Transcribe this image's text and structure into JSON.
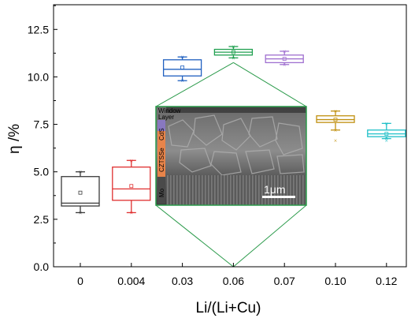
{
  "chart_data": {
    "type": "box",
    "xlabel": "Li/(Li+Cu)",
    "ylabel": "η /%",
    "ylim": [
      0,
      13.8
    ],
    "yticks": [
      "0.0",
      "2.5",
      "5.0",
      "7.5",
      "10.0",
      "12.5"
    ],
    "categories": [
      "0",
      "0.004",
      "0.03",
      "0.06",
      "0.07",
      "0.10",
      "0.12"
    ],
    "grid": false,
    "series": [
      {
        "color": "#3a3a3a",
        "whisker_min": 2.85,
        "q1": 3.2,
        "median": 3.35,
        "q3": 4.75,
        "whisker_max": 5.0,
        "mean": 3.9,
        "outliers": []
      },
      {
        "color": "#e03030",
        "whisker_min": 2.85,
        "q1": 3.5,
        "median": 4.1,
        "q3": 5.25,
        "whisker_max": 5.6,
        "mean": 4.25,
        "outliers": []
      },
      {
        "color": "#2060c0",
        "whisker_min": 9.8,
        "q1": 10.05,
        "median": 10.4,
        "q3": 10.9,
        "whisker_max": 11.05,
        "mean": 10.5,
        "outliers": []
      },
      {
        "color": "#20a050",
        "whisker_min": 11.0,
        "q1": 11.15,
        "median": 11.3,
        "q3": 11.45,
        "whisker_max": 11.6,
        "mean": 11.3,
        "outliers": []
      },
      {
        "color": "#a070d0",
        "whisker_min": 10.65,
        "q1": 10.75,
        "median": 10.95,
        "q3": 11.15,
        "whisker_max": 11.35,
        "mean": 10.95,
        "outliers": []
      },
      {
        "color": "#c09010",
        "whisker_min": 7.2,
        "q1": 7.6,
        "median": 7.75,
        "q3": 7.95,
        "whisker_max": 8.2,
        "mean": 7.75,
        "outliers": [
          6.65
        ]
      },
      {
        "color": "#20c0c8",
        "whisker_min": 6.75,
        "q1": 6.85,
        "median": 7.0,
        "q3": 7.2,
        "whisker_max": 7.55,
        "mean": 7.0,
        "outliers": [
          6.65
        ]
      }
    ],
    "inset": {
      "type": "SEM cross-section image",
      "layer_labels": [
        "Window Layer",
        "CdS",
        "CZTSSe",
        "Mo"
      ],
      "layer_colors": [
        "#707070",
        "#8878c0",
        "#e8844a",
        "#4a4a4a"
      ],
      "scale_bar": "1μm",
      "points_to_category": "0.06",
      "outline_color": "#2a9a4a"
    }
  }
}
